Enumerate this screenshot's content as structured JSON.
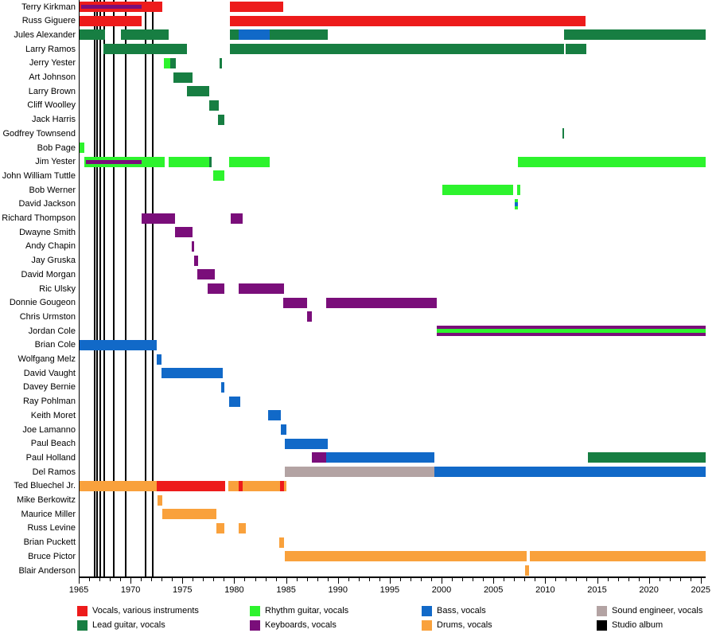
{
  "colors": {
    "vocals": "#ED1B1B",
    "lead": "#177E42",
    "rhythm": "#2DF32D",
    "keyboards": "#7A0E7A",
    "bass": "#1169C8",
    "drums": "#F9A13C",
    "sound": "#B3A3A3",
    "album": "#000000"
  },
  "legend": [
    {
      "label": "Vocals, various instruments",
      "role": "vocals"
    },
    {
      "label": "Lead guitar, vocals",
      "role": "lead"
    },
    {
      "label": "Rhythm guitar, vocals",
      "role": "rhythm"
    },
    {
      "label": "Keyboards, vocals",
      "role": "keyboards"
    },
    {
      "label": "Bass, vocals",
      "role": "bass"
    },
    {
      "label": "Drums, vocals",
      "role": "drums"
    },
    {
      "label": "Sound engineer, vocals",
      "role": "sound"
    },
    {
      "label": "Studio album",
      "role": "album"
    }
  ],
  "chart_data": {
    "type": "timeline",
    "title": "",
    "xlabel": "",
    "ylabel": "",
    "axis": {
      "start": 1965,
      "end": 2025,
      "right_edge": 2025.44,
      "major_tick_every": 5,
      "minor_tick_every": 1,
      "tick_labels": [
        "1965",
        "1970",
        "1975",
        "1980",
        "1985",
        "1990",
        "1995",
        "2000",
        "2005",
        "2010",
        "2015",
        "2020",
        "2025"
      ]
    },
    "albums": [
      1966.5,
      1966.75,
      1967.08,
      1967.45,
      1968.35,
      1969.55,
      1971.45,
      1972.1
    ],
    "members": [
      {
        "name": "Terry Kirkman",
        "segments": [
          {
            "from": 1965.1,
            "to": 1973.05,
            "role": "vocals"
          },
          {
            "from": 1979.6,
            "to": 1984.7,
            "role": "vocals"
          }
        ],
        "stripes": [
          {
            "from": 1965.25,
            "to": 1971.05,
            "role": "keyboards"
          }
        ]
      },
      {
        "name": "Russ Giguere",
        "segments": [
          {
            "from": 1965.1,
            "to": 1971.1,
            "role": "vocals"
          },
          {
            "from": 1979.6,
            "to": 2013.9,
            "role": "vocals"
          }
        ],
        "stripes": []
      },
      {
        "name": "Jules Alexander",
        "segments": [
          {
            "from": 1965.1,
            "to": 1967.5,
            "role": "lead"
          },
          {
            "from": 1969.05,
            "to": 1973.65,
            "role": "lead"
          },
          {
            "from": 1979.6,
            "to": 1980.4,
            "role": "lead"
          },
          {
            "from": 1980.4,
            "to": 1983.4,
            "role": "bass"
          },
          {
            "from": 1983.4,
            "to": 1989.0,
            "role": "lead"
          },
          {
            "from": 2011.8,
            "to": 2025.44,
            "role": "lead"
          }
        ],
        "stripes": []
      },
      {
        "name": "Larry Ramos",
        "segments": [
          {
            "from": 1967.4,
            "to": 1975.45,
            "role": "lead"
          },
          {
            "from": 1979.6,
            "to": 2011.8,
            "role": "lead"
          },
          {
            "from": 2011.95,
            "to": 2014.0,
            "role": "lead"
          }
        ],
        "stripes": []
      },
      {
        "name": "Jerry Yester",
        "segments": [
          {
            "from": 1973.25,
            "to": 1973.8,
            "role": "rhythm"
          },
          {
            "from": 1973.8,
            "to": 1974.35,
            "role": "lead"
          },
          {
            "from": 1978.6,
            "to": 1978.85,
            "role": "lead"
          }
        ],
        "stripes": []
      },
      {
        "name": "Art Johnson",
        "segments": [
          {
            "from": 1974.15,
            "to": 1975.95,
            "role": "lead"
          }
        ],
        "stripes": []
      },
      {
        "name": "Larry Brown",
        "segments": [
          {
            "from": 1975.45,
            "to": 1977.55,
            "role": "lead"
          }
        ],
        "stripes": []
      },
      {
        "name": "Cliff Woolley",
        "segments": [
          {
            "from": 1977.6,
            "to": 1978.5,
            "role": "lead"
          }
        ],
        "stripes": []
      },
      {
        "name": "Jack Harris",
        "segments": [
          {
            "from": 1978.45,
            "to": 1979.05,
            "role": "lead"
          }
        ],
        "stripes": []
      },
      {
        "name": "Godfrey Townsend",
        "segments": [
          {
            "from": 2011.65,
            "to": 2011.85,
            "role": "lead"
          }
        ],
        "stripes": []
      },
      {
        "name": "Bob Page",
        "segments": [
          {
            "from": 1965.1,
            "to": 1965.55,
            "role": "rhythm"
          }
        ],
        "stripes": []
      },
      {
        "name": "Jim Yester",
        "segments": [
          {
            "from": 1965.55,
            "to": 1973.3,
            "role": "rhythm"
          },
          {
            "from": 1973.7,
            "to": 1977.55,
            "role": "rhythm"
          },
          {
            "from": 1977.55,
            "to": 1977.8,
            "role": "lead"
          },
          {
            "from": 1979.5,
            "to": 1983.4,
            "role": "rhythm"
          },
          {
            "from": 2007.4,
            "to": 2025.44,
            "role": "rhythm"
          }
        ],
        "stripes": [
          {
            "from": 1965.7,
            "to": 1971.05,
            "role": "keyboards"
          }
        ]
      },
      {
        "name": "John William Tuttle",
        "segments": [
          {
            "from": 1978.0,
            "to": 1979.05,
            "role": "rhythm"
          }
        ],
        "stripes": []
      },
      {
        "name": "Bob Werner",
        "segments": [
          {
            "from": 2000.05,
            "to": 2006.9,
            "role": "rhythm"
          },
          {
            "from": 2007.25,
            "to": 2007.6,
            "role": "rhythm"
          }
        ],
        "stripes": []
      },
      {
        "name": "David Jackson",
        "segments": [
          {
            "from": 2007.05,
            "to": 2007.4,
            "role": "rhythm"
          }
        ],
        "stripes": [
          {
            "from": 2007.05,
            "to": 2007.4,
            "role": "bass"
          }
        ]
      },
      {
        "name": "Richard Thompson",
        "segments": [
          {
            "from": 1971.05,
            "to": 1974.3,
            "role": "keyboards"
          },
          {
            "from": 1979.65,
            "to": 1980.8,
            "role": "keyboards"
          }
        ],
        "stripes": []
      },
      {
        "name": "Dwayne Smith",
        "segments": [
          {
            "from": 1974.3,
            "to": 1975.95,
            "role": "keyboards"
          }
        ],
        "stripes": []
      },
      {
        "name": "Andy Chapin",
        "segments": [
          {
            "from": 1975.9,
            "to": 1976.15,
            "role": "keyboards"
          }
        ],
        "stripes": []
      },
      {
        "name": "Jay Gruska",
        "segments": [
          {
            "from": 1976.15,
            "to": 1976.5,
            "role": "keyboards"
          }
        ],
        "stripes": []
      },
      {
        "name": "David Morgan",
        "segments": [
          {
            "from": 1976.4,
            "to": 1978.1,
            "role": "keyboards"
          }
        ],
        "stripes": []
      },
      {
        "name": "Ric Ulsky",
        "segments": [
          {
            "from": 1977.4,
            "to": 1979.05,
            "role": "keyboards"
          },
          {
            "from": 1980.45,
            "to": 1984.8,
            "role": "keyboards"
          }
        ],
        "stripes": []
      },
      {
        "name": "Donnie Gougeon",
        "segments": [
          {
            "from": 1984.7,
            "to": 1987.0,
            "role": "keyboards"
          },
          {
            "from": 1988.9,
            "to": 1999.5,
            "role": "keyboards"
          }
        ],
        "stripes": []
      },
      {
        "name": "Chris Urmston",
        "segments": [
          {
            "from": 1987.0,
            "to": 1987.5,
            "role": "keyboards"
          }
        ],
        "stripes": []
      },
      {
        "name": "Jordan Cole",
        "segments": [
          {
            "from": 1999.5,
            "to": 2025.44,
            "role": "keyboards"
          }
        ],
        "stripes": [
          {
            "from": 1999.5,
            "to": 2025.44,
            "role": "rhythm"
          }
        ]
      },
      {
        "name": "Brian Cole",
        "segments": [
          {
            "from": 1965.1,
            "to": 1972.5,
            "role": "bass"
          }
        ],
        "stripes": []
      },
      {
        "name": "Wolfgang Melz",
        "segments": [
          {
            "from": 1972.5,
            "to": 1973.0,
            "role": "bass"
          }
        ],
        "stripes": []
      },
      {
        "name": "David Vaught",
        "segments": [
          {
            "from": 1973.0,
            "to": 1978.9,
            "role": "bass"
          }
        ],
        "stripes": []
      },
      {
        "name": "Davey Bernie",
        "segments": [
          {
            "from": 1978.7,
            "to": 1979.05,
            "role": "bass"
          }
        ],
        "stripes": []
      },
      {
        "name": "Ray Pohlman",
        "segments": [
          {
            "from": 1979.5,
            "to": 1980.55,
            "role": "bass"
          }
        ],
        "stripes": []
      },
      {
        "name": "Keith Moret",
        "segments": [
          {
            "from": 1983.25,
            "to": 1984.5,
            "role": "bass"
          }
        ],
        "stripes": []
      },
      {
        "name": "Joe Lamanno",
        "segments": [
          {
            "from": 1984.5,
            "to": 1985.05,
            "role": "bass"
          }
        ],
        "stripes": []
      },
      {
        "name": "Paul Beach",
        "segments": [
          {
            "from": 1984.9,
            "to": 1989.0,
            "role": "bass"
          }
        ],
        "stripes": []
      },
      {
        "name": "Paul Holland",
        "segments": [
          {
            "from": 1987.45,
            "to": 1988.9,
            "role": "keyboards"
          },
          {
            "from": 1988.9,
            "to": 1999.3,
            "role": "bass"
          },
          {
            "from": 2014.1,
            "to": 2025.44,
            "role": "lead"
          }
        ],
        "stripes": []
      },
      {
        "name": "Del Ramos",
        "segments": [
          {
            "from": 1984.9,
            "to": 1999.3,
            "role": "sound"
          },
          {
            "from": 1999.3,
            "to": 2025.44,
            "role": "bass"
          }
        ],
        "stripes": []
      },
      {
        "name": "Ted Bluechel Jr.",
        "segments": [
          {
            "from": 1965.1,
            "to": 1972.55,
            "role": "drums"
          },
          {
            "from": 1972.55,
            "to": 1979.1,
            "role": "vocals"
          },
          {
            "from": 1979.45,
            "to": 1980.45,
            "role": "drums"
          },
          {
            "from": 1980.45,
            "to": 1980.8,
            "role": "vocals"
          },
          {
            "from": 1980.8,
            "to": 1984.45,
            "role": "drums"
          },
          {
            "from": 1984.45,
            "to": 1984.8,
            "role": "vocals"
          },
          {
            "from": 1984.8,
            "to": 1985.05,
            "role": "drums"
          }
        ],
        "stripes": []
      },
      {
        "name": "Mike Berkowitz",
        "segments": [
          {
            "from": 1972.6,
            "to": 1973.05,
            "role": "drums"
          }
        ],
        "stripes": []
      },
      {
        "name": "Maurice Miller",
        "segments": [
          {
            "from": 1973.05,
            "to": 1978.25,
            "role": "drums"
          }
        ],
        "stripes": []
      },
      {
        "name": "Russ Levine",
        "segments": [
          {
            "from": 1978.25,
            "to": 1979.05,
            "role": "drums"
          },
          {
            "from": 1980.45,
            "to": 1981.1,
            "role": "drums"
          }
        ],
        "stripes": []
      },
      {
        "name": "Brian Puckett",
        "segments": [
          {
            "from": 1984.35,
            "to": 1984.8,
            "role": "drums"
          }
        ],
        "stripes": []
      },
      {
        "name": "Bruce Pictor",
        "segments": [
          {
            "from": 1984.9,
            "to": 2008.2,
            "role": "drums"
          },
          {
            "from": 2008.5,
            "to": 2025.44,
            "role": "drums"
          }
        ],
        "stripes": []
      },
      {
        "name": "Blair Anderson",
        "segments": [
          {
            "from": 2008.05,
            "to": 2008.45,
            "role": "drums"
          }
        ],
        "stripes": []
      }
    ]
  }
}
